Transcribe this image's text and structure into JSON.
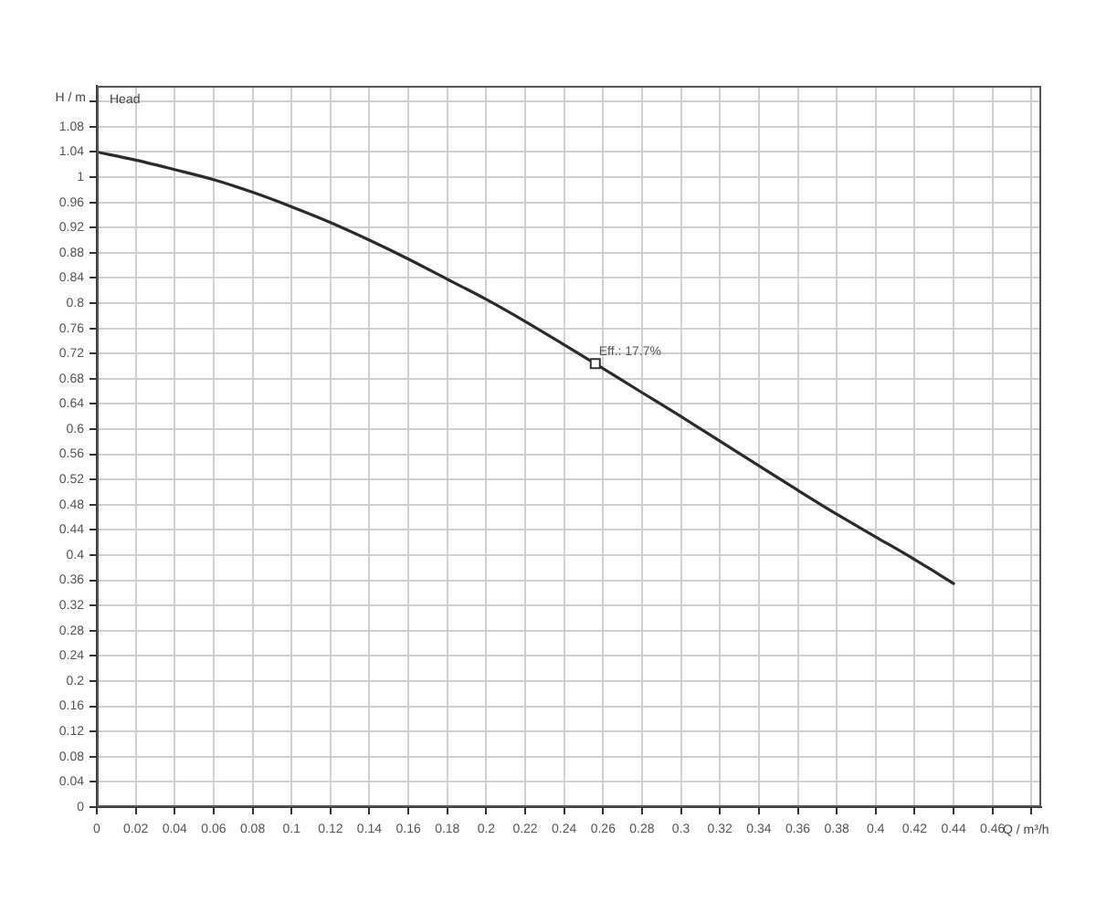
{
  "chart_data": {
    "type": "line",
    "title": "Head",
    "xlabel": "Q / m³/h",
    "ylabel": "H / m",
    "x": [
      0,
      0.02,
      0.04,
      0.06,
      0.08,
      0.1,
      0.12,
      0.14,
      0.16,
      0.18,
      0.2,
      0.22,
      0.24,
      0.256,
      0.28,
      0.3,
      0.32,
      0.34,
      0.36,
      0.38,
      0.4,
      0.42,
      0.44
    ],
    "series": [
      {
        "color": "#2b2b2b",
        "values": [
          1.04,
          1.027,
          1.012,
          0.996,
          0.976,
          0.953,
          0.928,
          0.9,
          0.87,
          0.838,
          0.806,
          0.771,
          0.734,
          0.704,
          0.658,
          0.62,
          0.581,
          0.542,
          0.503,
          0.465,
          0.429,
          0.393,
          0.355
        ]
      }
    ],
    "xlim": [
      0,
      0.485
    ],
    "ylim": [
      0,
      1.145
    ],
    "xticks": [
      0,
      0.02,
      0.04,
      0.06,
      0.08,
      0.1,
      0.12,
      0.14,
      0.16,
      0.18,
      0.2,
      0.22,
      0.24,
      0.26,
      0.28,
      0.3,
      0.32,
      0.34,
      0.36,
      0.38,
      0.4,
      0.42,
      0.44,
      0.46,
      {
        "value": 0.48,
        "label": null
      }
    ],
    "yticks": [
      0,
      0.04,
      0.08,
      0.12,
      0.16,
      0.2,
      0.24,
      0.28,
      0.32,
      0.36,
      0.4,
      0.44,
      0.48,
      0.52,
      0.56,
      0.6,
      0.64,
      0.68,
      0.72,
      0.76,
      0.8,
      0.84,
      0.88,
      0.92,
      0.96,
      1,
      1.04,
      1.08,
      {
        "value": 1.12,
        "label": null
      }
    ],
    "grid": true,
    "marker": "none",
    "annotations": [
      {
        "text": "Eff.: 17.7%",
        "x": 0.256,
        "y": 0.704
      }
    ]
  }
}
